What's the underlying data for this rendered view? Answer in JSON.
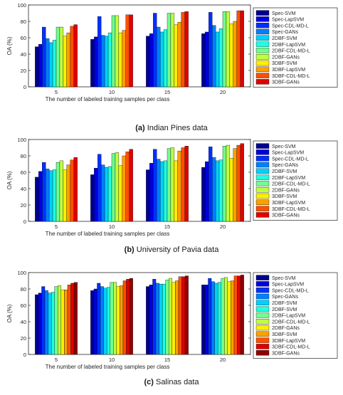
{
  "colors": [
    "#00008f",
    "#0000df",
    "#0030ff",
    "#0080ff",
    "#00d0ff",
    "#20ffdf",
    "#70ff8f",
    "#c0ff40",
    "#ffef00",
    "#ff9f00",
    "#ff5000",
    "#df0000",
    "#8f0000"
  ],
  "chart_data": [
    {
      "type": "bar",
      "caption_label": "(a)",
      "caption_text": "Indian Pines data",
      "xlabel": "The number of labeled training samples per class",
      "ylabel": "OA (%)",
      "ylim": [
        0,
        100
      ],
      "yticks": [
        0,
        20,
        40,
        60,
        80,
        100
      ],
      "categories": [
        "5",
        "10",
        "15",
        "20"
      ],
      "legend_position": "right",
      "grid": false,
      "series": [
        {
          "name": "Spec-SVM",
          "values": [
            49,
            58,
            62,
            65
          ]
        },
        {
          "name": "Spec-LapSVM",
          "values": [
            52,
            61,
            65,
            67
          ]
        },
        {
          "name": "Spec-CDL-MD-L",
          "values": [
            73,
            86,
            90,
            91
          ]
        },
        {
          "name": "Spec-GANs",
          "values": [
            59,
            63,
            73,
            75
          ]
        },
        {
          "name": "2DBF-SVM",
          "values": [
            54,
            62,
            67,
            67
          ]
        },
        {
          "name": "2DBF-LapSVM",
          "values": [
            57,
            66,
            70,
            71
          ]
        },
        {
          "name": "2DBF-CDL-MD-L",
          "values": [
            73,
            87,
            90,
            92
          ]
        },
        {
          "name": "2DBF-GANs",
          "values": [
            73,
            87,
            90,
            92
          ]
        },
        {
          "name": "3DBF-SVM",
          "values": [
            62,
            66,
            76,
            77
          ]
        },
        {
          "name": "3DBF-LapSVM",
          "values": [
            66,
            69,
            79,
            80
          ]
        },
        {
          "name": "3DBF-CDL-MD-L",
          "values": [
            74,
            88,
            91,
            93
          ]
        },
        {
          "name": "3DBF-GANs",
          "values": [
            76,
            88,
            92,
            93
          ]
        }
      ]
    },
    {
      "type": "bar",
      "caption_label": "(b)",
      "caption_text": "University of Pavia data",
      "xlabel": "The number of labeled training samples per class",
      "ylabel": "OA (%)",
      "ylim": [
        0,
        100
      ],
      "yticks": [
        0,
        20,
        40,
        60,
        80,
        100
      ],
      "categories": [
        "5",
        "10",
        "15",
        "20"
      ],
      "legend_position": "right",
      "grid": false,
      "series": [
        {
          "name": "Spec-SVM",
          "values": [
            54,
            57,
            63,
            66
          ]
        },
        {
          "name": "Spec-LapSVM",
          "values": [
            61,
            65,
            71,
            73
          ]
        },
        {
          "name": "Spec-CDL-MD-L",
          "values": [
            72,
            82,
            88,
            91
          ]
        },
        {
          "name": "Spec-GANs",
          "values": [
            64,
            69,
            76,
            78
          ]
        },
        {
          "name": "2DBF-SVM",
          "values": [
            62,
            66,
            73,
            74
          ]
        },
        {
          "name": "2DBF-LapSVM",
          "values": [
            63,
            67,
            74,
            75
          ]
        },
        {
          "name": "2DBF-CDL-MD-L",
          "values": [
            72,
            83,
            89,
            92
          ]
        },
        {
          "name": "2DBF-GANs",
          "values": [
            74,
            84,
            90,
            93
          ]
        },
        {
          "name": "3DBF-SVM",
          "values": [
            63,
            68,
            74,
            77
          ]
        },
        {
          "name": "3DBF-LapSVM",
          "values": [
            69,
            80,
            86,
            89
          ]
        },
        {
          "name": "3DBF-CDL-MD-L",
          "values": [
            75,
            85,
            90,
            93
          ]
        },
        {
          "name": "3DBF-GANs",
          "values": [
            78,
            88,
            92,
            95
          ]
        }
      ]
    },
    {
      "type": "bar",
      "caption_label": "(c)",
      "caption_text": "Salinas data",
      "xlabel": "The number of labeled training samples per class",
      "ylabel": "OA (%)",
      "ylim": [
        0,
        100
      ],
      "yticks": [
        0,
        20,
        40,
        60,
        80,
        100
      ],
      "categories": [
        "5",
        "10",
        "15",
        "20"
      ],
      "legend_position": "right",
      "grid": false,
      "series": [
        {
          "name": "Spec-SVM",
          "values": [
            73,
            78,
            83,
            85
          ]
        },
        {
          "name": "Spec-LapSVM",
          "values": [
            75,
            80,
            85,
            85
          ]
        },
        {
          "name": "Spec-CDL-MD-L",
          "values": [
            83,
            87,
            92,
            93
          ]
        },
        {
          "name": "Spec-GANs",
          "values": [
            78,
            83,
            87,
            89
          ]
        },
        {
          "name": "2DBF-SVM",
          "values": [
            75,
            81,
            86,
            87
          ]
        },
        {
          "name": "2DBF-SVM",
          "values": [
            76,
            82,
            86,
            88
          ]
        },
        {
          "name": "2DBF-LapSVM",
          "values": [
            83,
            88,
            91,
            93
          ]
        },
        {
          "name": "2DBF-CDL-MD-L",
          "values": [
            84,
            88,
            93,
            94
          ]
        },
        {
          "name": "2DBF-GANs",
          "values": [
            79,
            83,
            88,
            89
          ]
        },
        {
          "name": "3DBF-SVM",
          "values": [
            79,
            84,
            90,
            90
          ]
        },
        {
          "name": "3DBF-LapSVM",
          "values": [
            85,
            90,
            95,
            96
          ]
        },
        {
          "name": "3DBF-CDL-MD-L",
          "values": [
            87,
            92,
            95,
            96
          ]
        },
        {
          "name": "3DBF-GANs",
          "values": [
            88,
            93,
            96,
            97
          ]
        }
      ]
    }
  ]
}
